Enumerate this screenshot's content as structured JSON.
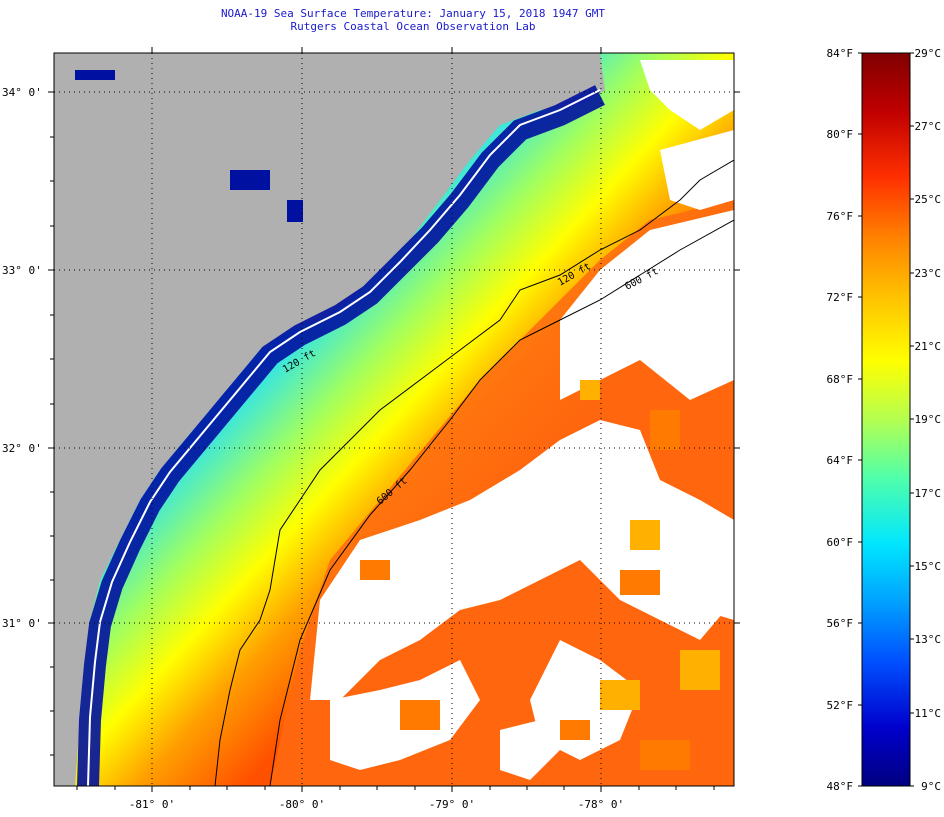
{
  "header": {
    "title": "NOAA-19 Sea Surface Temperature:  January 15, 2018 1947 GMT",
    "subtitle": "Rutgers Coastal Ocean Observation Lab"
  },
  "map": {
    "lat_ticks": [
      "34° 0'",
      "33° 0'",
      "32° 0'",
      "31° 0'"
    ],
    "lon_ticks": [
      "-81° 0'",
      "-80° 0'",
      "-79° 0'",
      "-78° 0'"
    ],
    "contours": [
      "120 ft",
      "600 ft",
      "600 ft",
      "120 ft"
    ],
    "colors": {
      "land": "#b0b0b0",
      "cloud": "#ffffff",
      "grid": "#000000"
    }
  },
  "colorbar": {
    "fahrenheit": [
      "84°F",
      "80°F",
      "76°F",
      "72°F",
      "68°F",
      "64°F",
      "60°F",
      "56°F",
      "52°F",
      "48°F"
    ],
    "celsius": [
      "29°C",
      "27°C",
      "25°C",
      "23°C",
      "21°C",
      "19°C",
      "17°C",
      "15°C",
      "13°C",
      "11°C",
      "9°C"
    ],
    "stops": [
      "#000080",
      "#0000cd",
      "#0050ff",
      "#00a0ff",
      "#00e6ff",
      "#50ffaa",
      "#b4ff50",
      "#ffff00",
      "#ffc000",
      "#ff8000",
      "#ff3000",
      "#c00000",
      "#800000"
    ]
  }
}
